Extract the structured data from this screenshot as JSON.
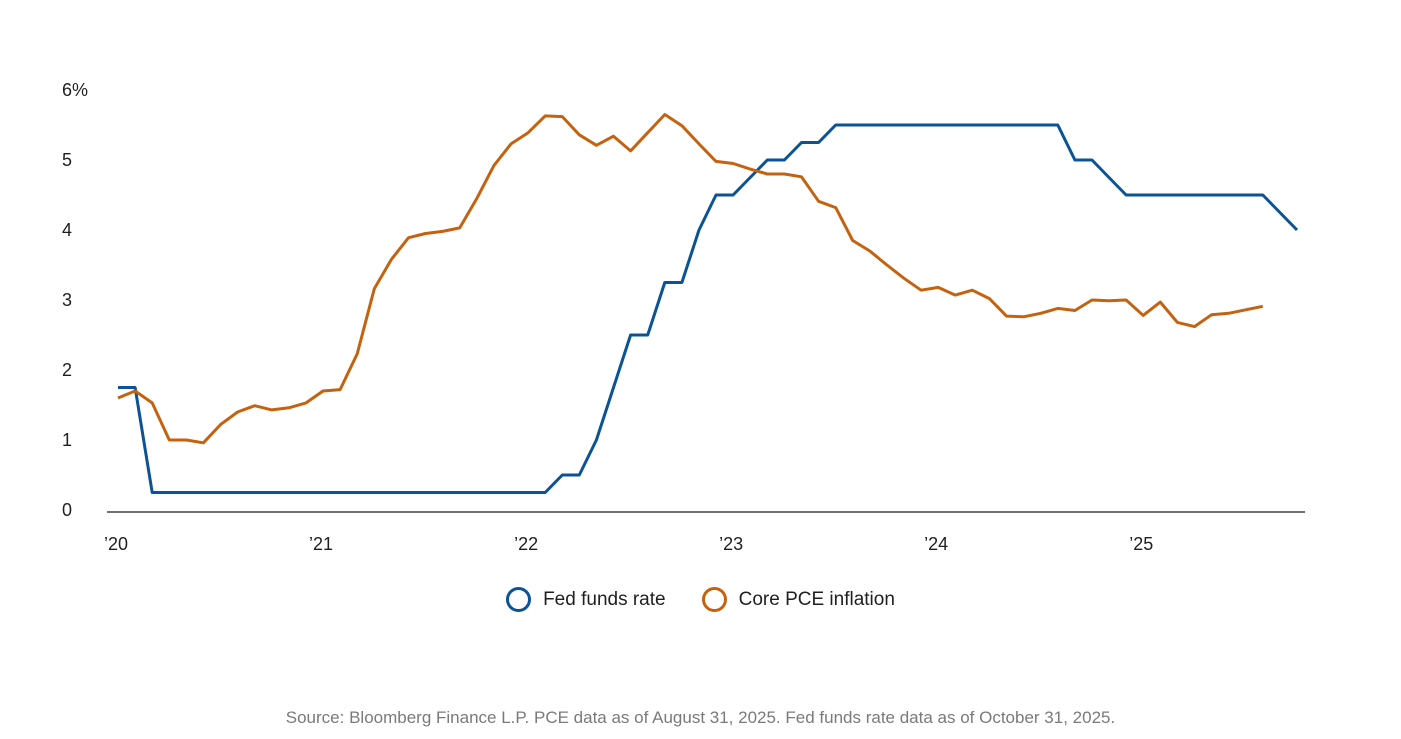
{
  "chart_data": {
    "type": "line",
    "title": "",
    "xlabel": "",
    "ylabel": "",
    "x_range": [
      "2020-01",
      "2025-12"
    ],
    "ylim": [
      0,
      6
    ],
    "y_ticks": [
      {
        "value": 0,
        "label": "0"
      },
      {
        "value": 1,
        "label": "1"
      },
      {
        "value": 2,
        "label": "2"
      },
      {
        "value": 3,
        "label": "3"
      },
      {
        "value": 4,
        "label": "4"
      },
      {
        "value": 5,
        "label": "5"
      },
      {
        "value": 6,
        "label": "6%"
      }
    ],
    "x_ticks": [
      {
        "date": "2020-01",
        "label": "’20"
      },
      {
        "date": "2021-01",
        "label": "’21"
      },
      {
        "date": "2022-01",
        "label": "’22"
      },
      {
        "date": "2023-01",
        "label": "’23"
      },
      {
        "date": "2024-01",
        "label": "’24"
      },
      {
        "date": "2025-01",
        "label": "’25"
      }
    ],
    "grid": false,
    "legend_position": "bottom-center",
    "series": [
      {
        "name": "Fed funds rate",
        "color": "#0b5394",
        "points": [
          [
            "2020-01",
            1.75
          ],
          [
            "2020-02",
            1.75
          ],
          [
            "2020-03",
            0.25
          ],
          [
            "2022-02",
            0.25
          ],
          [
            "2022-03",
            0.5
          ],
          [
            "2022-04",
            0.5
          ],
          [
            "2022-05",
            1.0
          ],
          [
            "2022-06",
            1.75
          ],
          [
            "2022-07",
            2.5
          ],
          [
            "2022-08",
            2.5
          ],
          [
            "2022-09",
            3.25
          ],
          [
            "2022-10",
            3.25
          ],
          [
            "2022-11",
            4.0
          ],
          [
            "2022-12",
            4.5
          ],
          [
            "2023-01",
            4.5
          ],
          [
            "2023-02",
            4.75
          ],
          [
            "2023-03",
            5.0
          ],
          [
            "2023-04",
            5.0
          ],
          [
            "2023-05",
            5.25
          ],
          [
            "2023-06",
            5.25
          ],
          [
            "2023-07",
            5.5
          ],
          [
            "2024-08",
            5.5
          ],
          [
            "2024-09",
            5.0
          ],
          [
            "2024-10",
            5.0
          ],
          [
            "2024-11",
            4.75
          ],
          [
            "2024-12",
            4.5
          ],
          [
            "2025-08",
            4.5
          ],
          [
            "2025-09",
            4.25
          ],
          [
            "2025-10",
            4.0
          ]
        ]
      },
      {
        "name": "Core PCE inflation",
        "color": "#c5620f",
        "points": [
          [
            "2020-01",
            1.6
          ],
          [
            "2020-02",
            1.7
          ],
          [
            "2020-03",
            1.53
          ],
          [
            "2020-04",
            1.0
          ],
          [
            "2020-05",
            1.0
          ],
          [
            "2020-06",
            0.96
          ],
          [
            "2020-07",
            1.22
          ],
          [
            "2020-08",
            1.4
          ],
          [
            "2020-09",
            1.49
          ],
          [
            "2020-10",
            1.43
          ],
          [
            "2020-11",
            1.46
          ],
          [
            "2020-12",
            1.53
          ],
          [
            "2021-01",
            1.7
          ],
          [
            "2021-02",
            1.72
          ],
          [
            "2021-03",
            2.23
          ],
          [
            "2021-04",
            3.16
          ],
          [
            "2021-05",
            3.58
          ],
          [
            "2021-06",
            3.89
          ],
          [
            "2021-07",
            3.95
          ],
          [
            "2021-08",
            3.98
          ],
          [
            "2021-09",
            4.03
          ],
          [
            "2021-10",
            4.45
          ],
          [
            "2021-11",
            4.92
          ],
          [
            "2021-12",
            5.23
          ],
          [
            "2022-01",
            5.39
          ],
          [
            "2022-02",
            5.63
          ],
          [
            "2022-03",
            5.62
          ],
          [
            "2022-04",
            5.36
          ],
          [
            "2022-05",
            5.21
          ],
          [
            "2022-06",
            5.34
          ],
          [
            "2022-07",
            5.13
          ],
          [
            "2022-08",
            5.39
          ],
          [
            "2022-09",
            5.65
          ],
          [
            "2022-10",
            5.49
          ],
          [
            "2022-11",
            5.23
          ],
          [
            "2022-12",
            4.98
          ],
          [
            "2023-01",
            4.95
          ],
          [
            "2023-02",
            4.87
          ],
          [
            "2023-03",
            4.8
          ],
          [
            "2023-04",
            4.8
          ],
          [
            "2023-05",
            4.76
          ],
          [
            "2023-06",
            4.41
          ],
          [
            "2023-07",
            4.32
          ],
          [
            "2023-08",
            3.85
          ],
          [
            "2023-09",
            3.7
          ],
          [
            "2023-10",
            3.5
          ],
          [
            "2023-11",
            3.31
          ],
          [
            "2023-12",
            3.14
          ],
          [
            "2024-01",
            3.18
          ],
          [
            "2024-02",
            3.07
          ],
          [
            "2024-03",
            3.14
          ],
          [
            "2024-04",
            3.02
          ],
          [
            "2024-05",
            2.77
          ],
          [
            "2024-06",
            2.76
          ],
          [
            "2024-07",
            2.81
          ],
          [
            "2024-08",
            2.88
          ],
          [
            "2024-09",
            2.85
          ],
          [
            "2024-10",
            3.0
          ],
          [
            "2024-11",
            2.99
          ],
          [
            "2024-12",
            3.0
          ],
          [
            "2025-01",
            2.78
          ],
          [
            "2025-02",
            2.97
          ],
          [
            "2025-03",
            2.68
          ],
          [
            "2025-04",
            2.62
          ],
          [
            "2025-05",
            2.79
          ],
          [
            "2025-06",
            2.81
          ],
          [
            "2025-07",
            2.86
          ],
          [
            "2025-08",
            2.91
          ]
        ]
      }
    ]
  },
  "legend": {
    "items": [
      {
        "label": "Fed funds rate",
        "color": "#0b5394"
      },
      {
        "label": "Core PCE inflation",
        "color": "#c5620f"
      }
    ]
  },
  "source": "Source: Bloomberg Finance L.P. PCE data as of August 31, 2025. Fed funds rate data as of October 31, 2025."
}
